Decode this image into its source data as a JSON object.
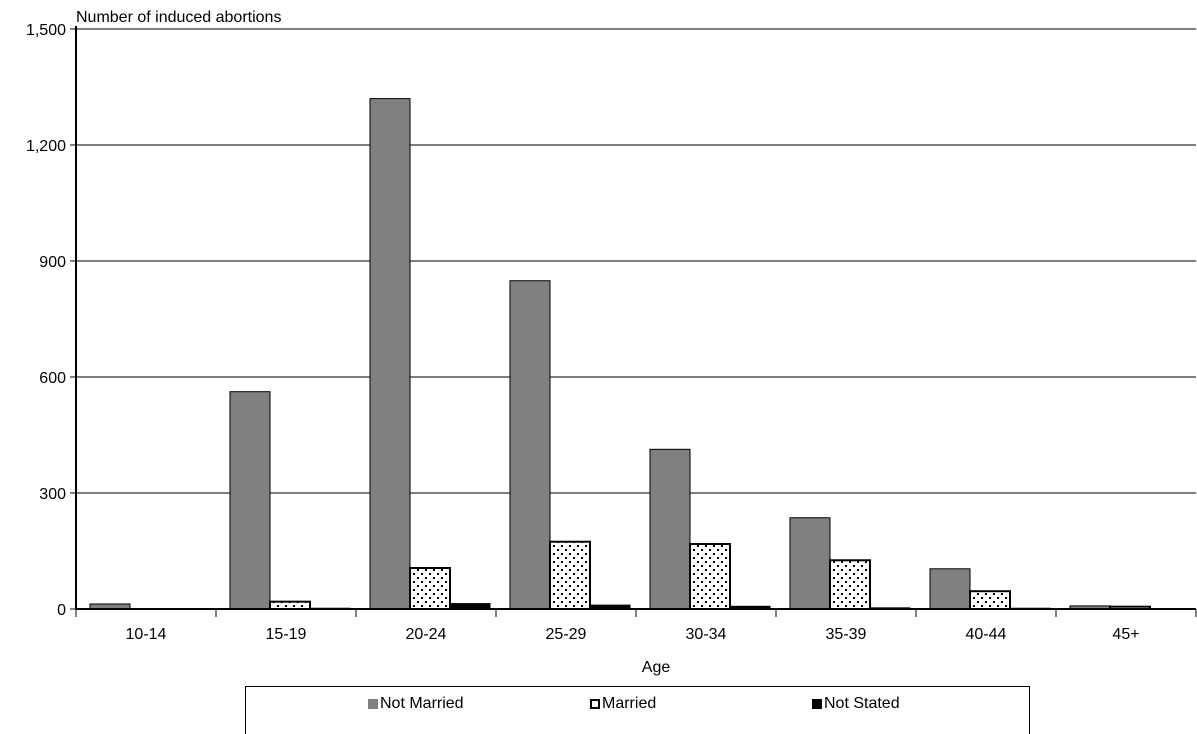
{
  "chart_data": {
    "type": "bar",
    "title": "",
    "ylabel": "Number of induced abortions",
    "xlabel": "Age",
    "ylim": [
      0,
      1500
    ],
    "yticks": [
      0,
      300,
      600,
      900,
      1200,
      1500
    ],
    "ytick_labels": [
      "0",
      "300",
      "600",
      "900",
      "1,200",
      "1,500"
    ],
    "grid": true,
    "legend_position": "bottom",
    "categories": [
      "10-14",
      "15-19",
      "20-24",
      "25-29",
      "30-34",
      "35-39",
      "40-44",
      "45+"
    ],
    "series": [
      {
        "name": "Not Married",
        "color": "#808080",
        "pattern": "solid-gray",
        "values": [
          13,
          562,
          1320,
          849,
          413,
          236,
          104,
          8
        ]
      },
      {
        "name": "Married",
        "color": "#ffffff",
        "pattern": "dotted",
        "values": [
          0,
          19,
          106,
          174,
          168,
          126,
          46,
          6
        ]
      },
      {
        "name": "Not Stated",
        "color": "#000000",
        "pattern": "solid-black",
        "values": [
          0,
          2,
          14,
          10,
          7,
          3,
          2,
          1
        ]
      }
    ]
  }
}
